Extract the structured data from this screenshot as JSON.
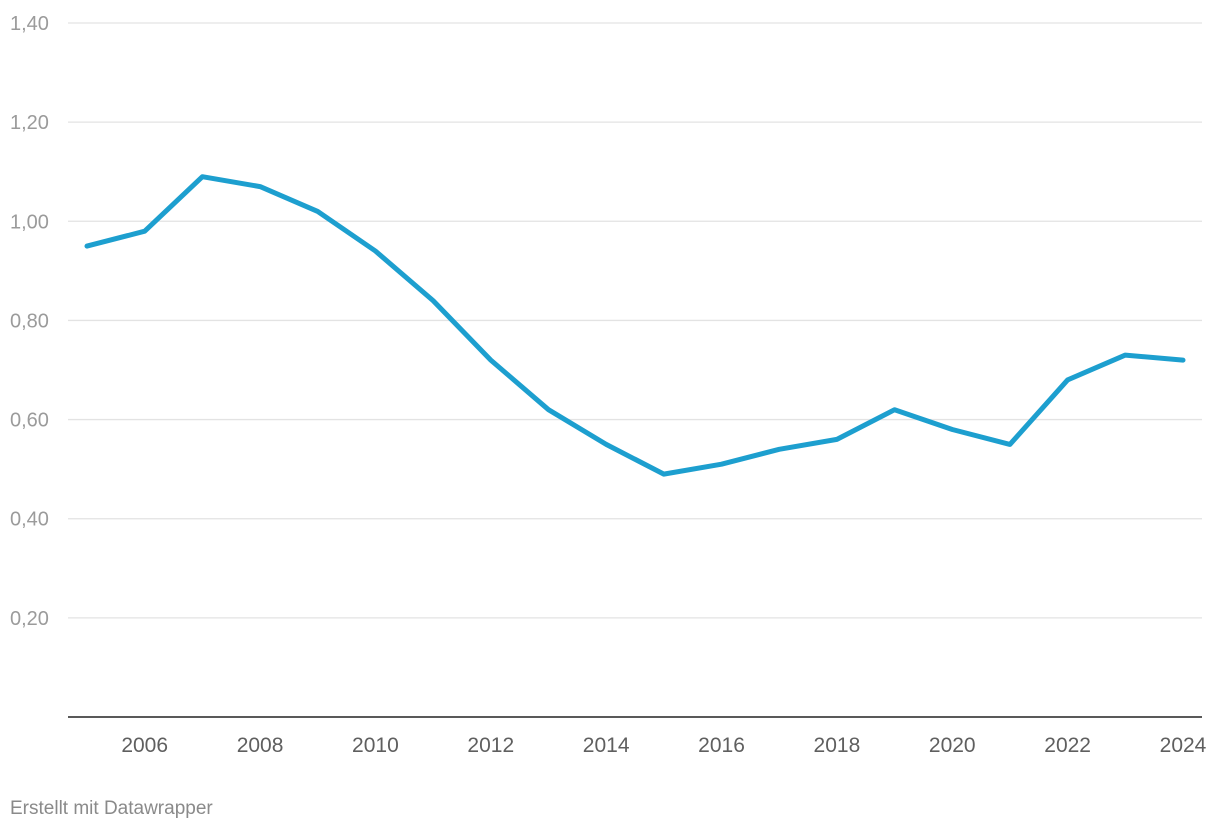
{
  "chart_data": {
    "type": "line",
    "title": "",
    "xlabel": "",
    "ylabel": "",
    "xlim": [
      2005,
      2024
    ],
    "ylim": [
      0,
      1.4
    ],
    "y_ticks": [
      0.2,
      0.4,
      0.6,
      0.8,
      1.0,
      1.2,
      1.4
    ],
    "y_tick_labels": [
      "0,20",
      "0,40",
      "0,60",
      "0,80",
      "1,00",
      "1,20",
      "1,40"
    ],
    "x_ticks": [
      2006,
      2008,
      2010,
      2012,
      2014,
      2016,
      2018,
      2020,
      2022,
      2024
    ],
    "x_tick_labels": [
      "2006",
      "2008",
      "2010",
      "2012",
      "2014",
      "2016",
      "2018",
      "2020",
      "2022",
      "2024"
    ],
    "grid": true,
    "series": [
      {
        "color": "#1d9fcf",
        "x": [
          2005,
          2006,
          2007,
          2008,
          2009,
          2010,
          2011,
          2012,
          2013,
          2014,
          2015,
          2016,
          2017,
          2018,
          2019,
          2020,
          2021,
          2022,
          2023,
          2024
        ],
        "values": [
          0.95,
          0.98,
          1.09,
          1.07,
          1.02,
          0.94,
          0.84,
          0.72,
          0.62,
          0.55,
          0.49,
          0.51,
          0.54,
          0.56,
          0.62,
          0.58,
          0.55,
          0.68,
          0.73,
          0.72
        ]
      }
    ]
  },
  "footer": {
    "credit": "Erstellt mit Datawrapper"
  }
}
